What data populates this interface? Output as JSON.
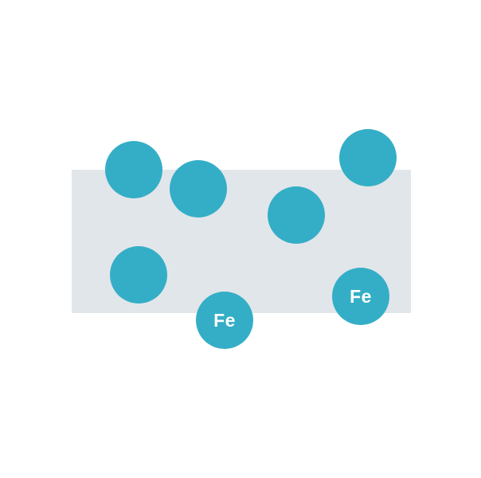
{
  "diagram": {
    "panel_color": "#e1e6ea",
    "atom_color": "#34aec6",
    "atom_text_color": "#ffffff",
    "atoms": [
      {
        "label": ""
      },
      {
        "label": ""
      },
      {
        "label": ""
      },
      {
        "label": ""
      },
      {
        "label": ""
      },
      {
        "label": "Fe"
      },
      {
        "label": "Fe"
      }
    ]
  }
}
